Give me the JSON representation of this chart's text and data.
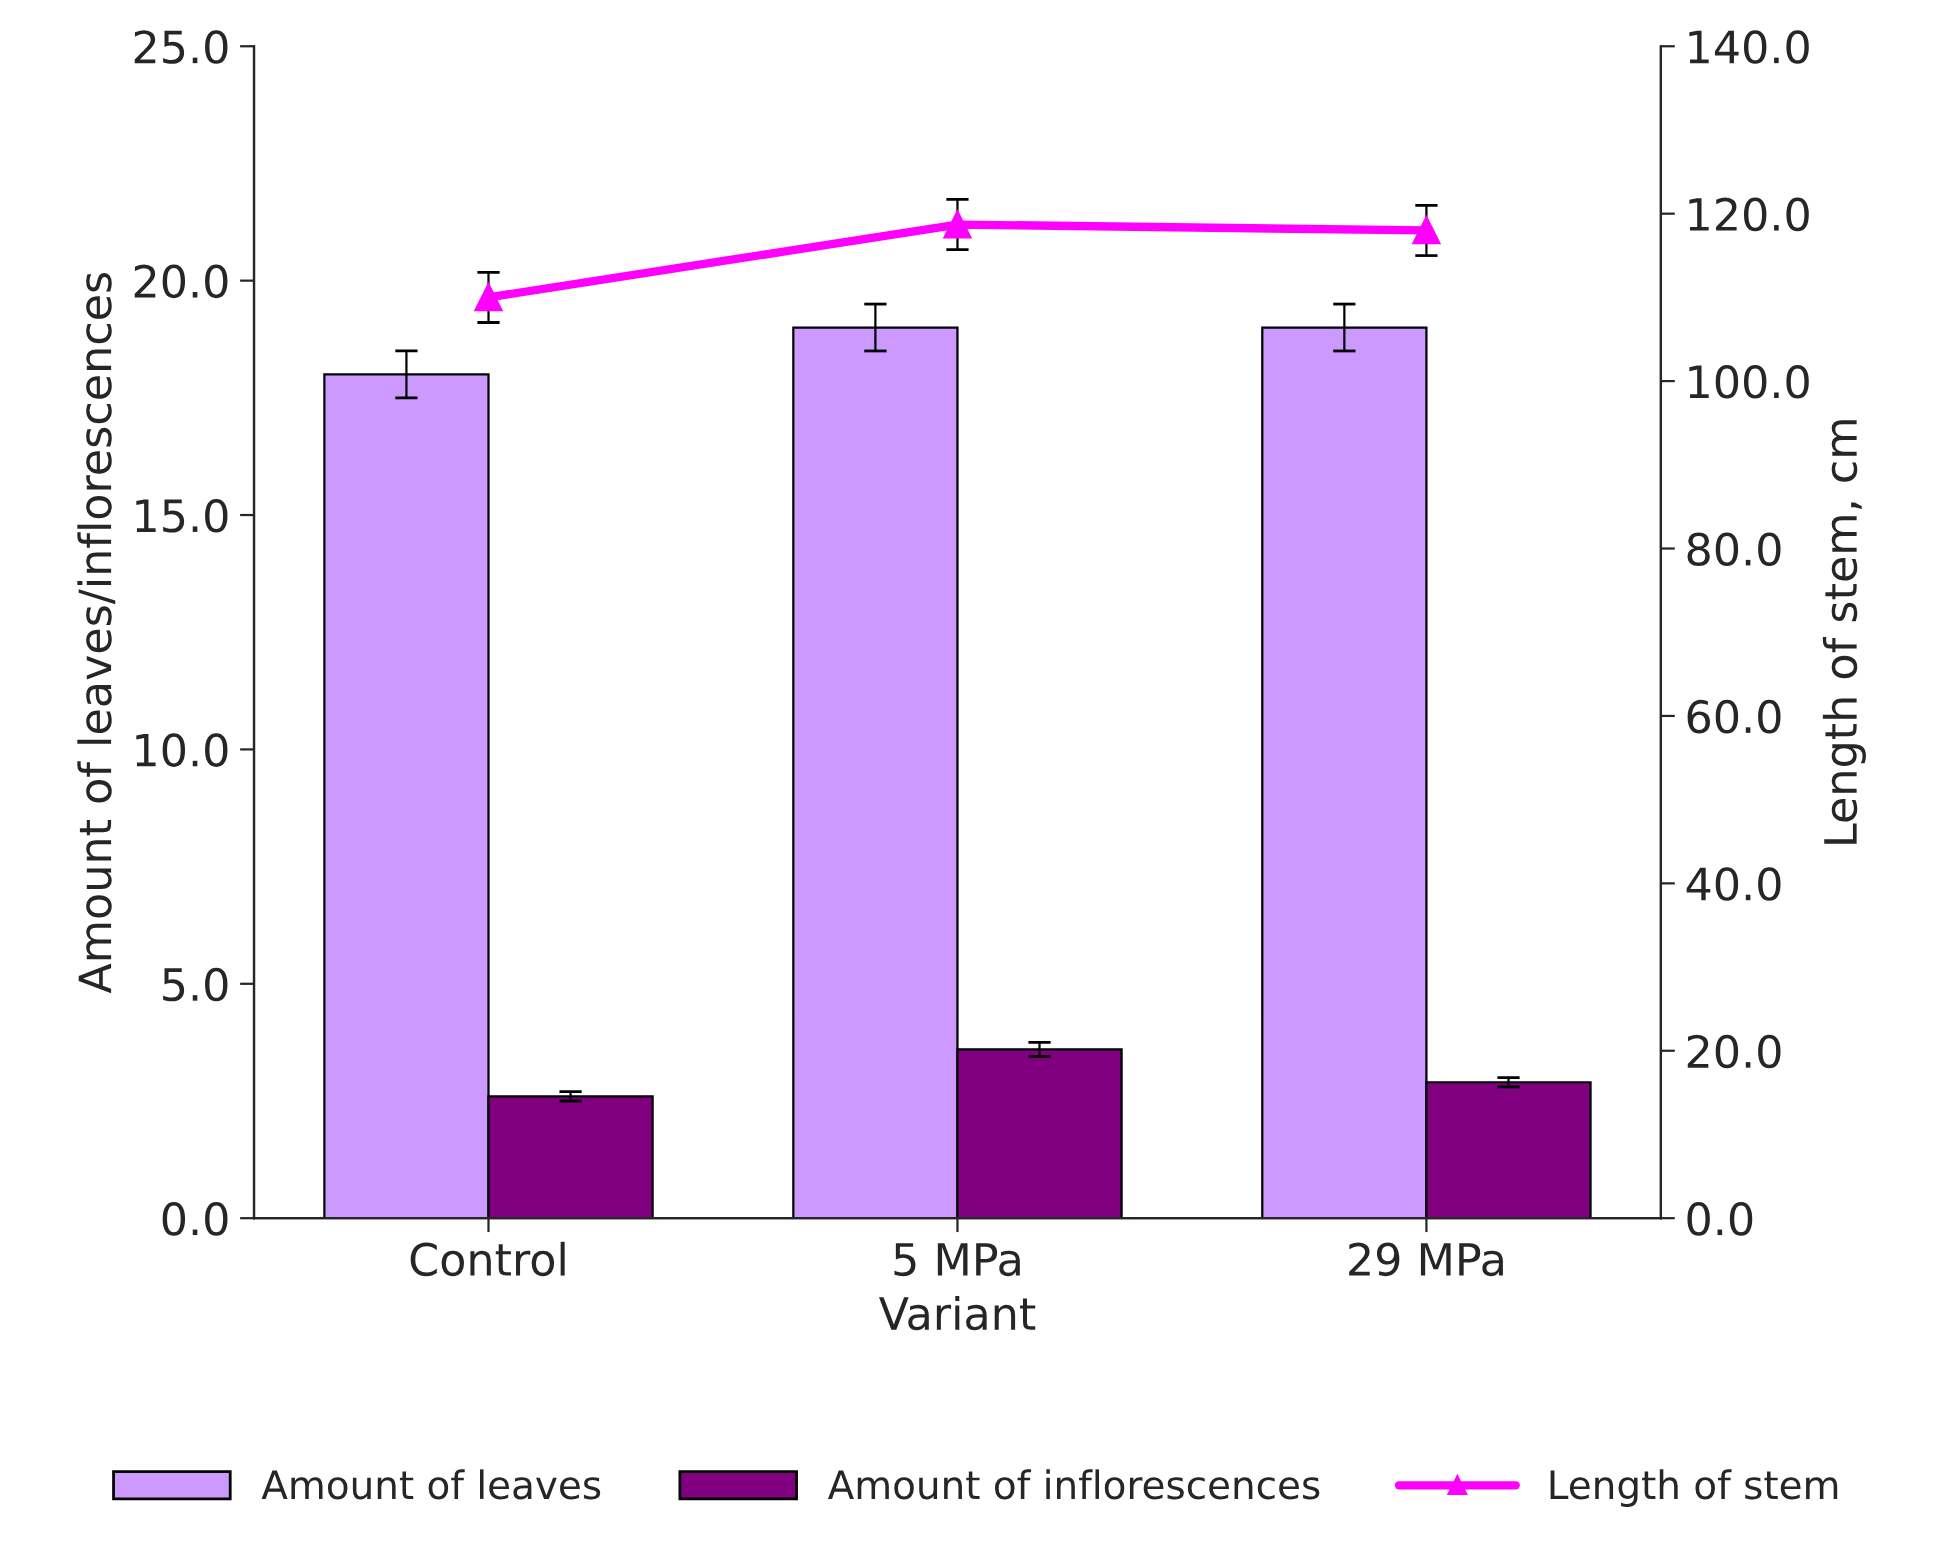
{
  "chart_data": {
    "type": "bar",
    "xlabel": "Variant",
    "ylabel": "Amount of leaves/inflorescences",
    "y2label": "Length of stem, cm",
    "categories": [
      "Control",
      "5 MPa",
      "29 MPa"
    ],
    "series": [
      {
        "name": "Amount of leaves",
        "color": "#cc99ff",
        "values": [
          18.0,
          19.0,
          19.0
        ],
        "errors": [
          0.5,
          0.5,
          0.5
        ]
      },
      {
        "name": "Amount of inflorescences",
        "color": "#800080",
        "values": [
          2.6,
          3.6,
          2.9
        ],
        "errors": [
          0.1,
          0.15,
          0.1
        ]
      },
      {
        "name": "Length of stem",
        "type": "line",
        "axis": "y2",
        "color": "#ff00ff",
        "marker": "triangle",
        "values": [
          110,
          118.7,
          118
        ],
        "errors": [
          3,
          3,
          3
        ]
      }
    ],
    "ylim": [
      0,
      25
    ],
    "yticks": [
      {
        "value": 0,
        "label": "0.0"
      },
      {
        "value": 5,
        "label": "5.0"
      },
      {
        "value": 10,
        "label": "10.0"
      },
      {
        "value": 15,
        "label": "15.0"
      },
      {
        "value": 20,
        "label": "20.0"
      },
      {
        "value": 25,
        "label": "25.0"
      }
    ],
    "y2lim": [
      0,
      140
    ],
    "y2ticks": [
      {
        "value": 0,
        "label": "0.0"
      },
      {
        "value": 20,
        "label": "20.0"
      },
      {
        "value": 40,
        "label": "40.0"
      },
      {
        "value": 60,
        "label": "60.0"
      },
      {
        "value": 80,
        "label": "80.0"
      },
      {
        "value": 100,
        "label": "100.0"
      },
      {
        "value": 120,
        "label": "120.0"
      },
      {
        "value": 140,
        "label": "140.0"
      }
    ],
    "grid": false,
    "legend": "bottom"
  }
}
